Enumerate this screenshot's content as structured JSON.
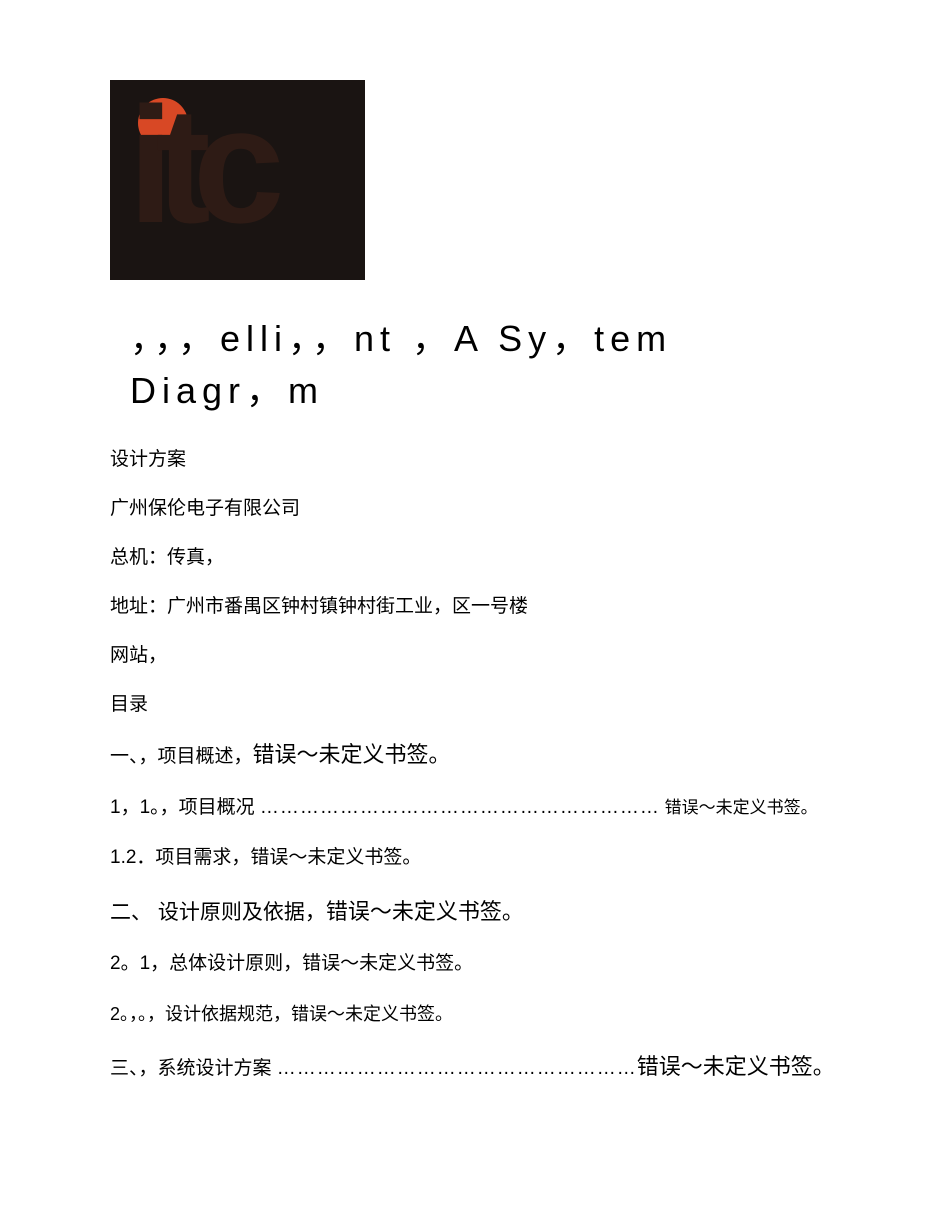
{
  "logo": {
    "background_color": "#1a1412",
    "dot_color": "#d84825",
    "text": "itc",
    "text_color": "#2e1b15"
  },
  "title": "，，，elli，，nt ，A Sy，tem Diagr，m",
  "info": {
    "design_plan": "设计方案",
    "company": "广州保伦电子有限公司",
    "phone_fax": "总机：传真，",
    "address": "地址：广州市番禺区钟村镇钟村街工业，区一号楼",
    "website": "网站，",
    "toc_label": "目录"
  },
  "toc": {
    "item1": {
      "prefix": "一、，项目概述，",
      "error": "错误～未定义书签。"
    },
    "item1_1": {
      "prefix": "1，1。，项目概况 ",
      "dots": "……………………………………………………",
      "error": " 错误～未定义书签。"
    },
    "item1_2": "1.2．项目需求，错误～未定义书签。",
    "item2": {
      "prefix": "二、 设计原则及依据，",
      "error": "错误～未定义书签。"
    },
    "item2_1": "2。1，总体设计原则，错误～未定义书签。",
    "item2_2": "2。，。，设计依据规范，错误～未定义书签。",
    "item3": {
      "prefix": "三、，系统设计方案 ",
      "dots": "………………………………………………",
      "error": "错误～未定义书签。"
    }
  }
}
